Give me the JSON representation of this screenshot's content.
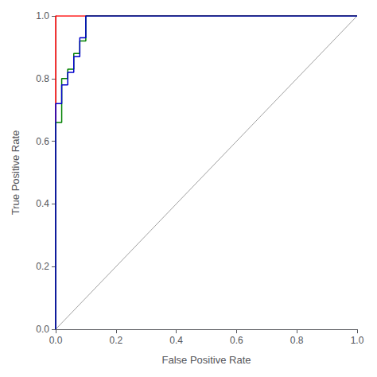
{
  "chart_data": {
    "type": "line",
    "xlabel": "False Positive Rate",
    "ylabel": "True Positive Rate",
    "xlim": [
      0.0,
      1.0
    ],
    "ylim": [
      0.0,
      1.0
    ],
    "xticks": [
      {
        "value": 0.0,
        "label": "0.0"
      },
      0.2,
      0.4,
      0.6,
      0.8,
      {
        "value": 1.0,
        "label": "1.0"
      }
    ],
    "yticks": [
      {
        "value": 0.0,
        "label": "0.0"
      },
      0.2,
      0.4,
      0.6,
      0.8,
      {
        "value": 1.0,
        "label": "1.0"
      }
    ],
    "grid": false,
    "series": [
      {
        "type": "line",
        "color": "#888888",
        "x": [
          0,
          1
        ],
        "values": [
          0,
          1
        ]
      },
      {
        "type": "step",
        "color": "#FF0000",
        "x": [
          0.0,
          0.0,
          0.02,
          0.02,
          1.0
        ],
        "values": [
          0.0,
          1.0,
          1.0,
          1.0,
          1.0
        ]
      },
      {
        "type": "step",
        "color": "#008000",
        "x": [
          0.0,
          0.0,
          0.02,
          0.04,
          0.06,
          0.08,
          0.1,
          0.1,
          0.2,
          1.0
        ],
        "values": [
          0.0,
          0.66,
          0.8,
          0.83,
          0.88,
          0.92,
          0.97,
          1.0,
          1.0,
          1.0
        ]
      },
      {
        "type": "step",
        "color": "#0000CC",
        "x": [
          0.0,
          0.0,
          0.02,
          0.04,
          0.06,
          0.08,
          0.1,
          0.1,
          0.2,
          1.0
        ],
        "values": [
          0.0,
          0.72,
          0.78,
          0.82,
          0.87,
          0.93,
          0.97,
          1.0,
          1.0,
          1.0
        ]
      }
    ]
  }
}
